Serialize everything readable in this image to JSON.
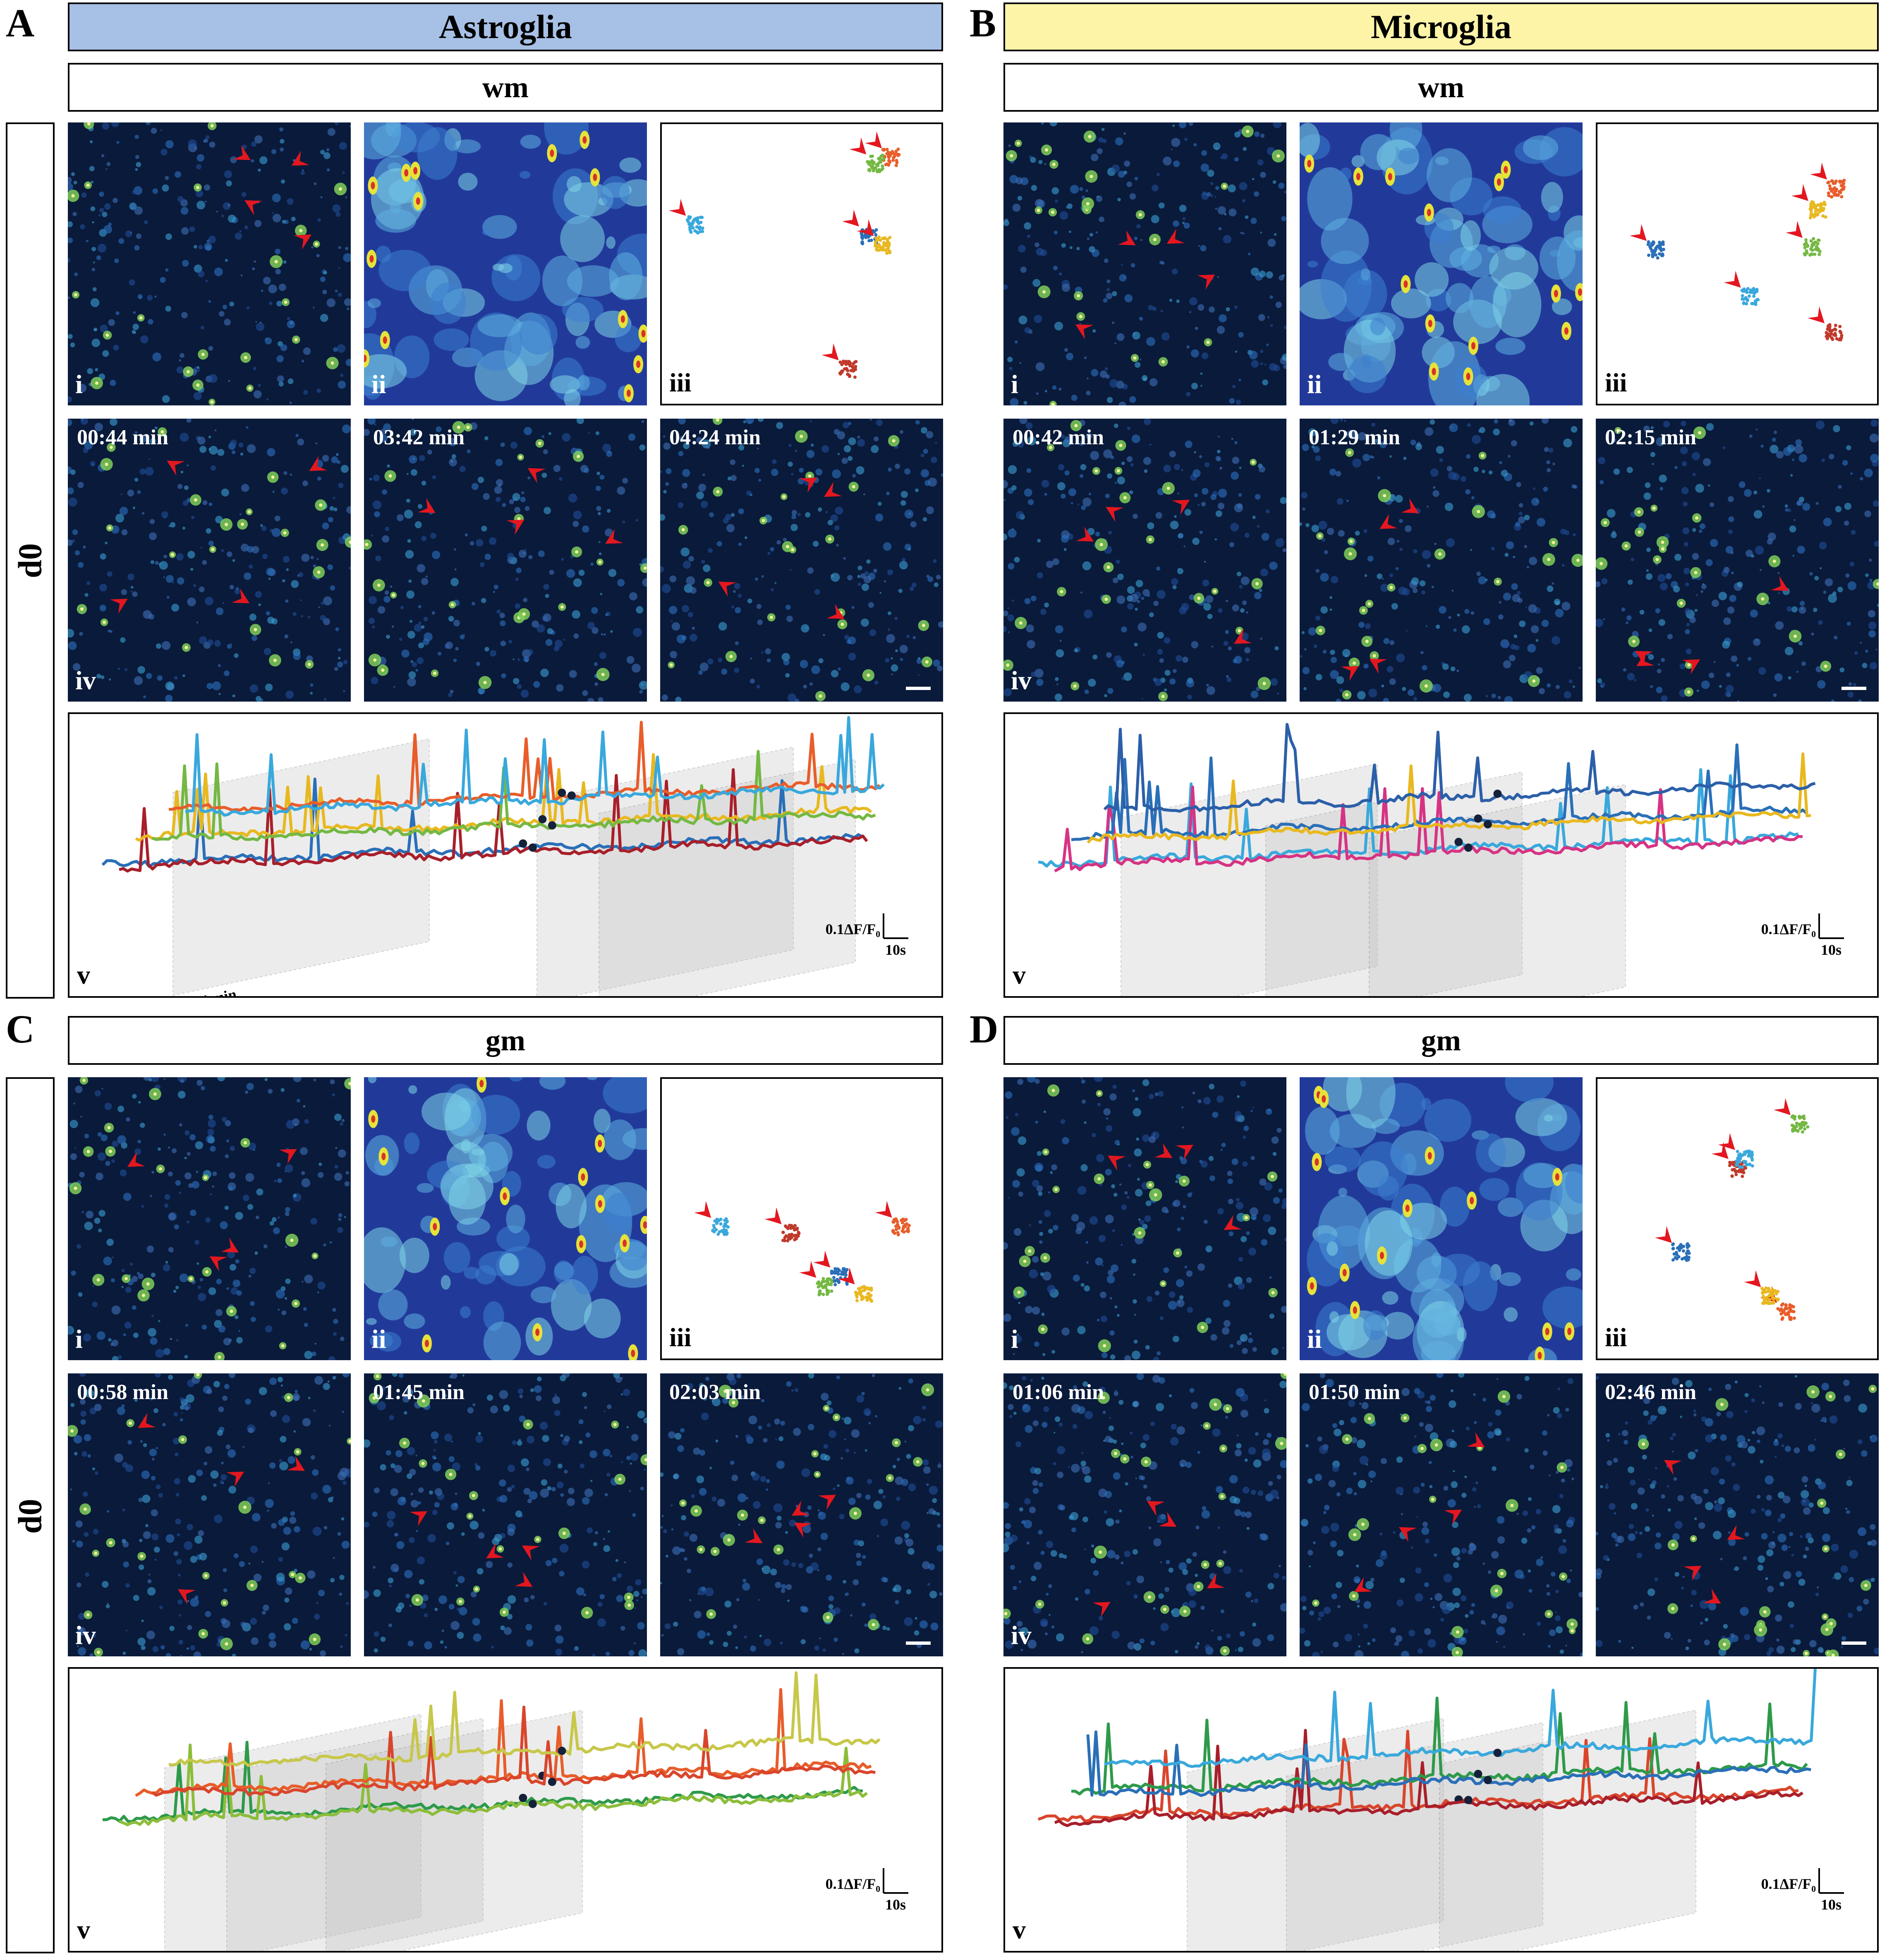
{
  "panels": {
    "A": {
      "letter": "A",
      "title": "Astroglia",
      "title_bg": "#a7c0e6",
      "region": "wm",
      "day": "d0",
      "labels": {
        "i": "i",
        "ii": "ii",
        "iii": "iii",
        "iv": "iv",
        "v": "v"
      },
      "times": [
        "00:44 min",
        "03:42 min",
        "04:24 min"
      ],
      "trace_times": [
        "00:44 min",
        "03:42 min",
        "04:24 min"
      ]
    },
    "B": {
      "letter": "B",
      "title": "Microglia",
      "title_bg": "#fdf4a8",
      "region": "wm",
      "labels": {
        "i": "i",
        "ii": "ii",
        "iii": "iii",
        "iv": "iv",
        "v": "v"
      },
      "times": [
        "00:42 min",
        "01:29 min",
        "02:15 min"
      ],
      "trace_times": [
        "00:42 min",
        "01:29 min",
        "02:15 min"
      ]
    },
    "C": {
      "letter": "C",
      "region": "gm",
      "day": "d0",
      "labels": {
        "i": "i",
        "ii": "ii",
        "iii": "iii",
        "iv": "iv",
        "v": "v"
      },
      "times": [
        "00:58 min",
        "01:45 min",
        "02:03 min"
      ],
      "trace_times": [
        "00:58 min",
        "01:45 min",
        "02:03 min"
      ]
    },
    "D": {
      "letter": "D",
      "region": "gm",
      "labels": {
        "i": "i",
        "ii": "ii",
        "iii": "iii",
        "iv": "iv",
        "v": "v"
      },
      "times": [
        "01:06 min",
        "01:50 min",
        "02:46 min"
      ],
      "trace_times": [
        "01:06 min",
        "01:50 min",
        "02:46 min"
      ]
    }
  },
  "scale": {
    "y": "0.1ΔF/F₀",
    "x": "10s"
  },
  "colors": {
    "arrow": "#e3171f",
    "panel_dark": "#0a1a3a",
    "heat_bg": "#213a9a"
  }
}
